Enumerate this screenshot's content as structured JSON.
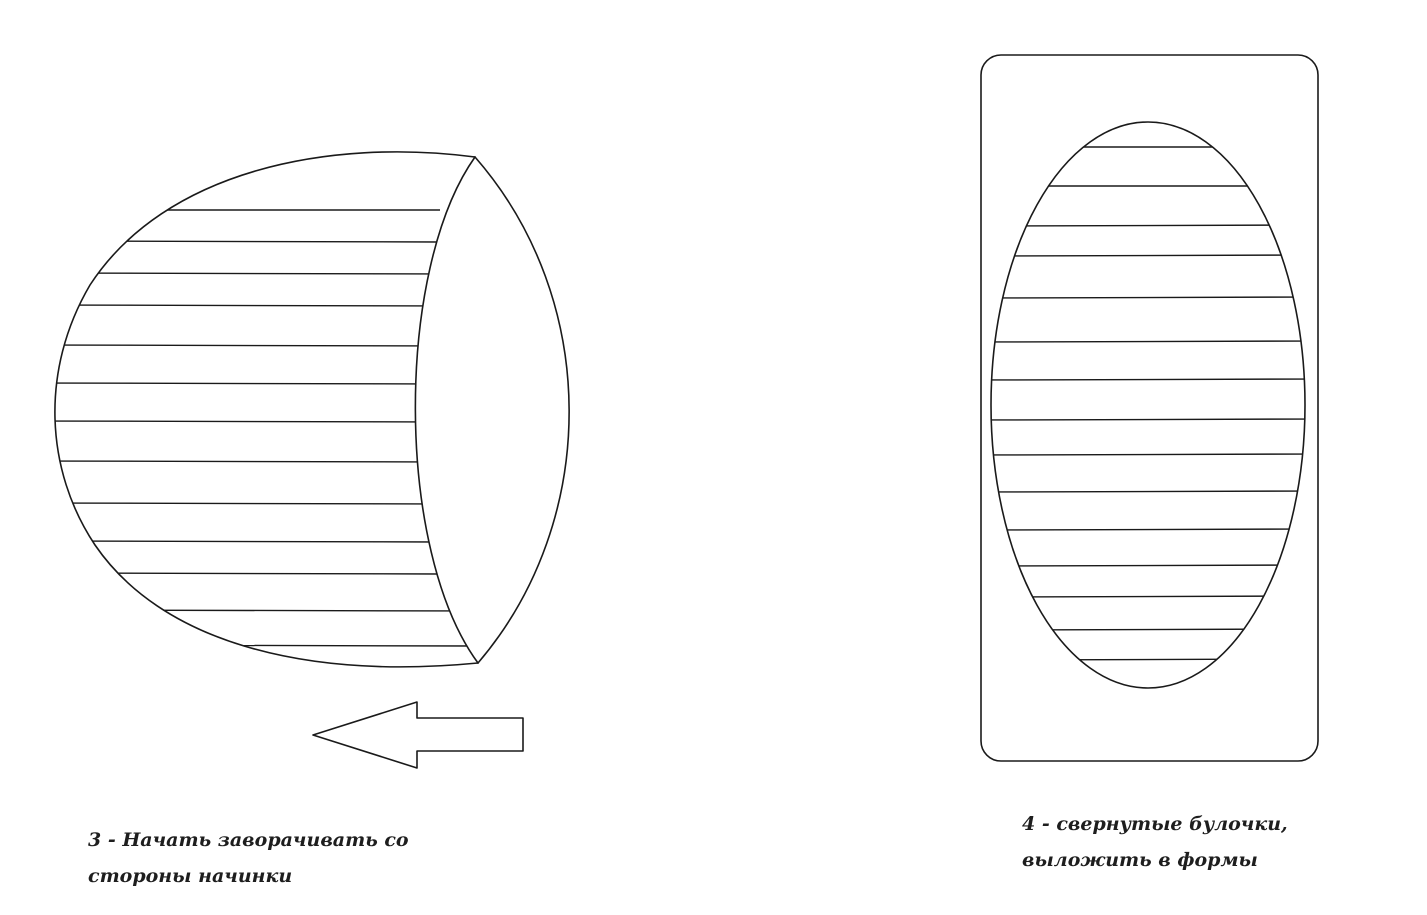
{
  "step_3": {
    "caption_line_1": "3 - Начать заворачивать со",
    "caption_line_2": "стороны начинки"
  },
  "step_4": {
    "caption_line_1": "4 - свернутые булочки,",
    "caption_line_2": "выложить в формы"
  },
  "colors": {
    "line": "#1a1a1a",
    "background": "#ffffff"
  }
}
